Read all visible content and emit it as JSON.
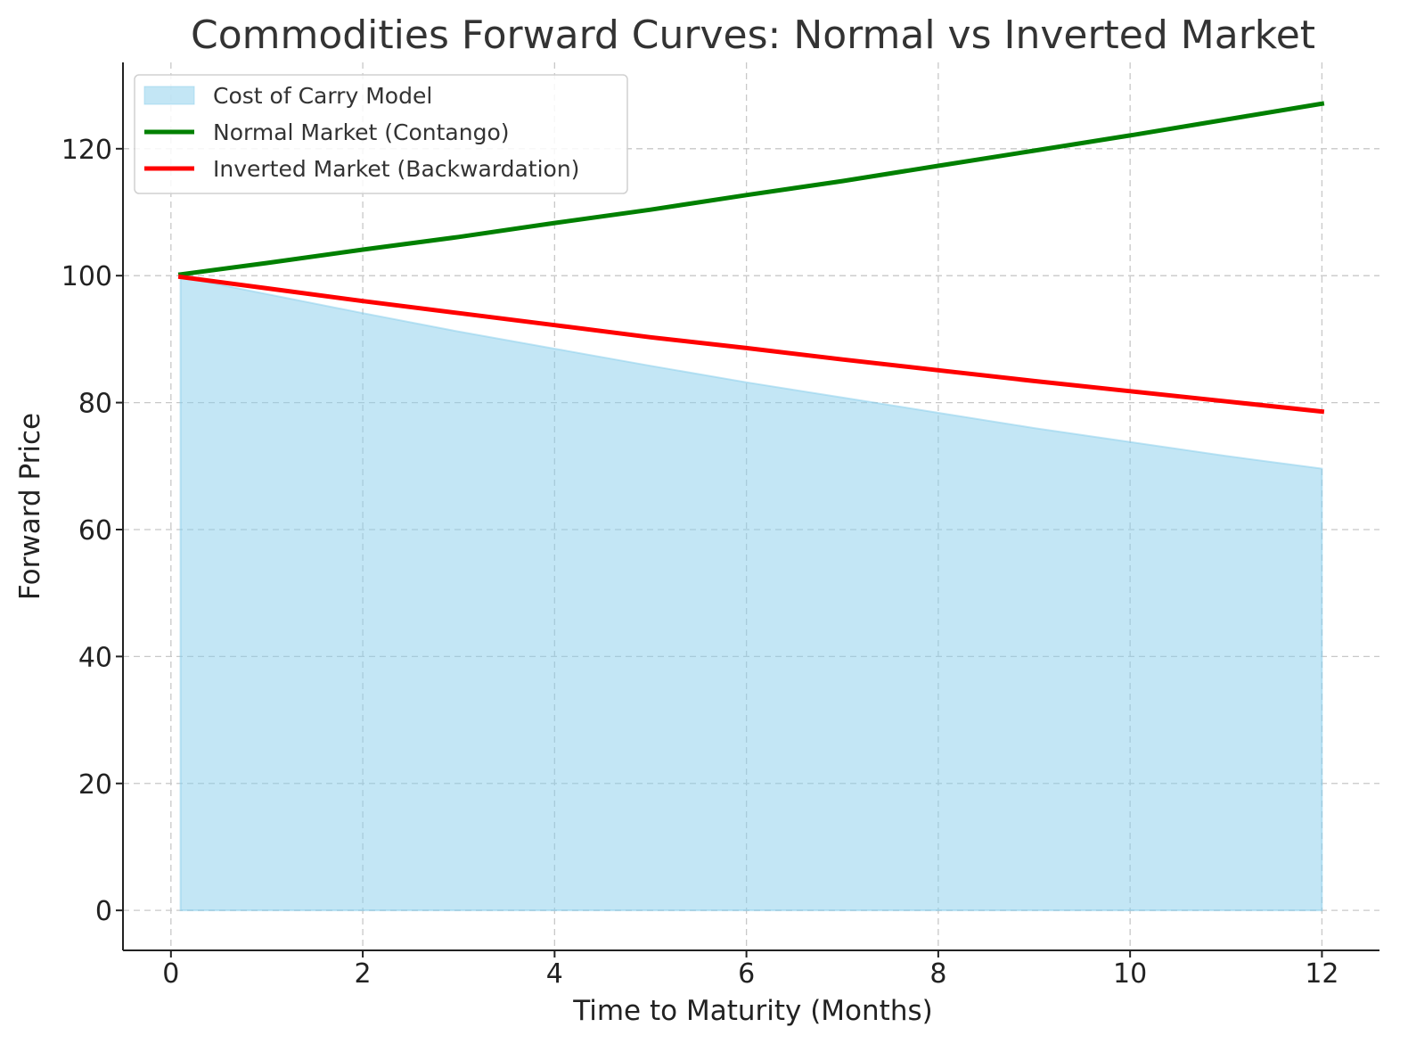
{
  "chart_data": {
    "type": "line",
    "title": "Commodities Forward Curves: Normal vs Inverted Market",
    "xlabel": "Time to Maturity (Months)",
    "ylabel": "Forward Price",
    "xlim": [
      -0.5,
      12.6
    ],
    "ylim": [
      -6.3,
      133.6
    ],
    "xticks": [
      0,
      2,
      4,
      6,
      8,
      10,
      12
    ],
    "yticks": [
      0,
      20,
      40,
      60,
      80,
      100,
      120
    ],
    "grid": true,
    "legend_position": "top-left",
    "x": [
      0.1,
      1,
      2,
      3,
      4,
      5,
      6,
      7,
      8,
      9,
      10,
      11,
      12
    ],
    "series": [
      {
        "name": "Cost of Carry Model",
        "kind": "area",
        "color": "#87ceeb",
        "values": [
          99.8,
          97.1,
          94.1,
          91.2,
          88.5,
          85.8,
          83.2,
          80.8,
          78.4,
          76.0,
          73.8,
          71.6,
          69.6
        ]
      },
      {
        "name": "Normal Market (Contango)",
        "kind": "line",
        "color": "#008000",
        "values": [
          100.2,
          102.0,
          104.1,
          106.1,
          108.3,
          110.4,
          112.7,
          114.9,
          117.3,
          119.7,
          122.1,
          124.6,
          127.1
        ]
      },
      {
        "name": "Inverted Market (Backwardation)",
        "kind": "line",
        "color": "#ff0000",
        "values": [
          99.8,
          98.0,
          96.0,
          94.1,
          92.2,
          90.3,
          88.6,
          86.8,
          85.1,
          83.4,
          81.8,
          80.2,
          78.6
        ]
      }
    ]
  }
}
